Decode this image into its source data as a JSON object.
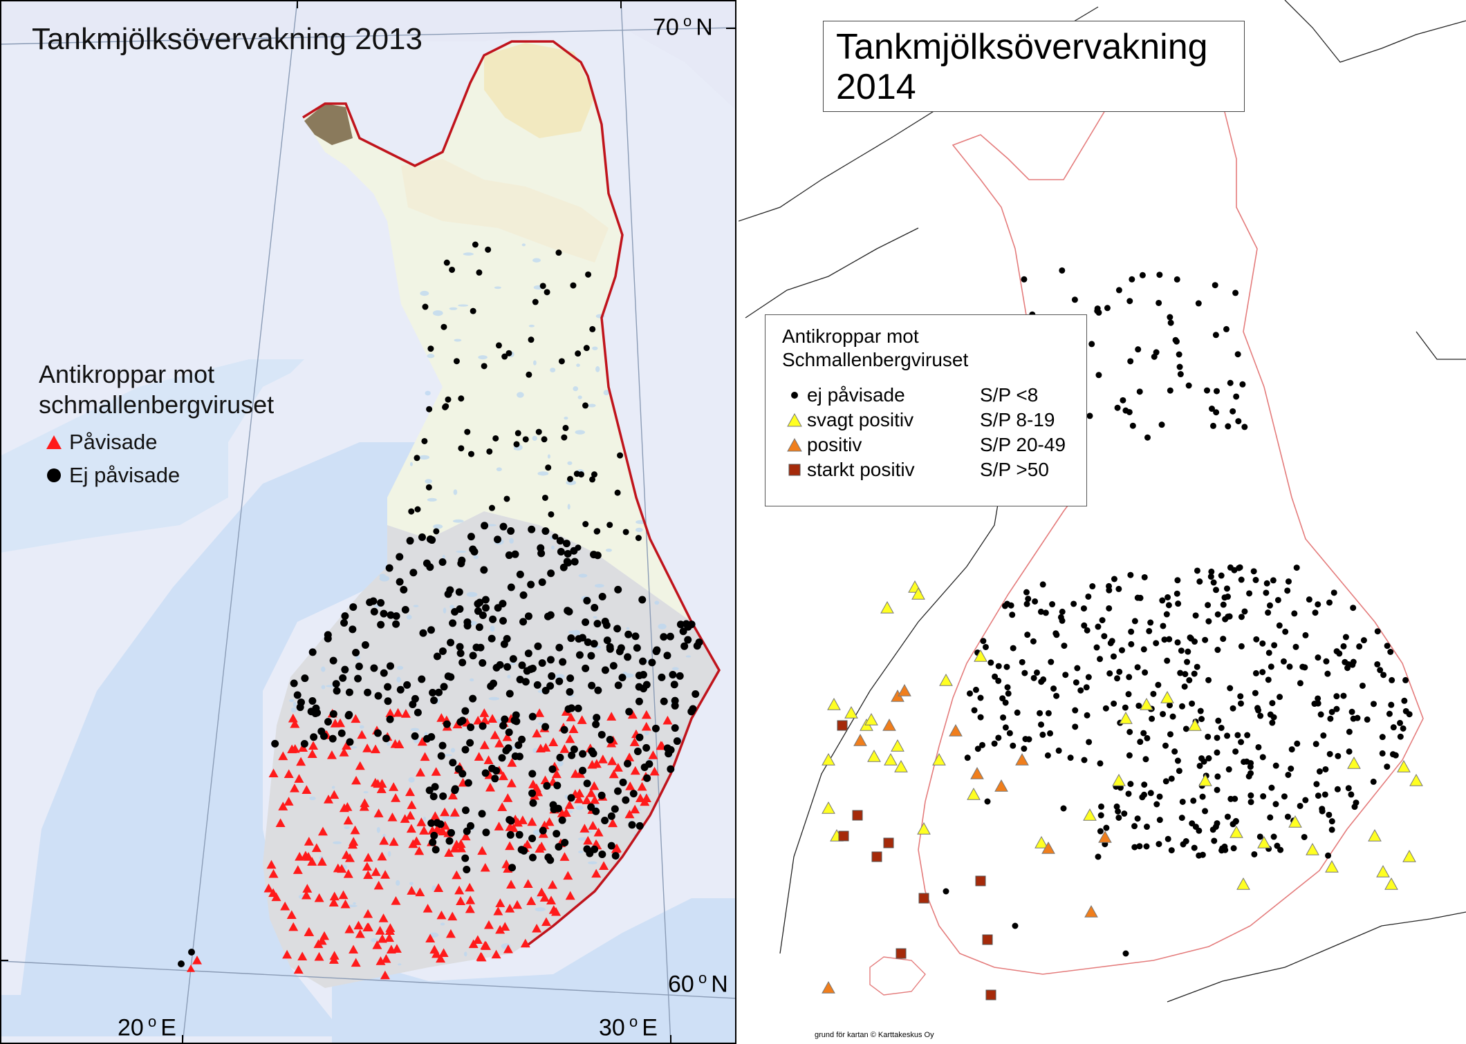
{
  "left_map": {
    "title": "Tankmjölksövervakning 2013",
    "lat_70": "70",
    "lat_70_dir": "N",
    "lat_60": "60",
    "lat_60_dir": "N",
    "lon_20": "20",
    "lon_20_dir": "E",
    "lon_30": "30",
    "lon_30_dir": "E",
    "legend_title_line1": "Antikroppar mot",
    "legend_title_line2": "schmallenbergviruset",
    "legend_positive": "Påvisade",
    "legend_negative": "Ej påvisade",
    "colors": {
      "positive": "#ff1a1a",
      "negative": "#000000",
      "border": "#c0141c",
      "sea": "#cfe0f6",
      "land_north": "#f3f5e7",
      "land_south": "#dcdde0"
    }
  },
  "right_map": {
    "title_line1": "Tankmjölksövervakning",
    "title_line2": "2014",
    "legend_title_line1": "Antikroppar mot",
    "legend_title_line2": "Schmallenbergviruset",
    "legend": [
      {
        "label": "ej påvisade",
        "range": "S/P <8",
        "icon": "black-dot",
        "color": "#000000"
      },
      {
        "label": "svagt positiv",
        "range": "S/P 8-19",
        "icon": "yellow-triangle",
        "color": "#ffff22"
      },
      {
        "label": "positiv",
        "range": "S/P 20-49",
        "icon": "orange-triangle",
        "color": "#f07e1c"
      },
      {
        "label": "starkt positiv",
        "range": "S/P >50",
        "icon": "brown-square",
        "color": "#a52a0a"
      }
    ],
    "credit": "grund för kartan © Karttakeskus Oy",
    "colors": {
      "border": "#e47b7b",
      "coast": "#333333"
    }
  }
}
